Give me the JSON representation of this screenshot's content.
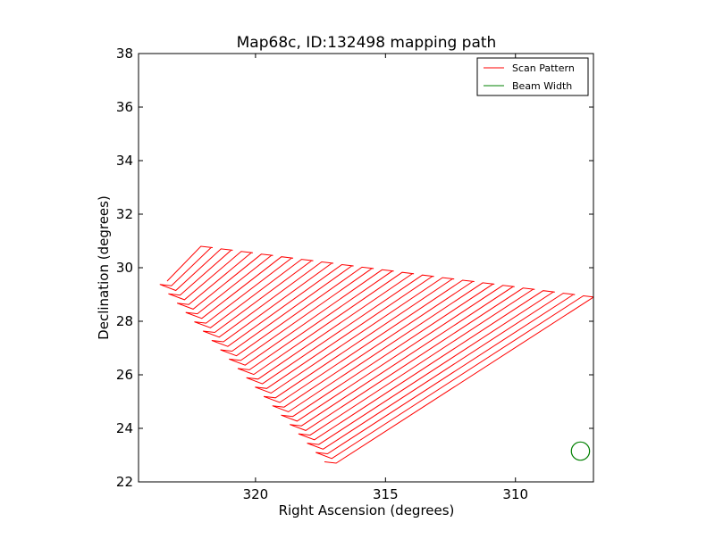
{
  "chart_data": {
    "type": "line",
    "title": "Map68c, ID:132498 mapping path",
    "xlabel": "Right Ascension (degrees)",
    "ylabel": "Declination (degrees)",
    "xlim": [
      324.5,
      307.0
    ],
    "ylim": [
      22,
      38
    ],
    "x_ticks": [
      320,
      315,
      310
    ],
    "x_tick_labels": [
      "320",
      "315",
      "310"
    ],
    "y_ticks": [
      22,
      24,
      26,
      28,
      30,
      32,
      34,
      36,
      38
    ],
    "y_tick_labels": [
      "22",
      "24",
      "26",
      "28",
      "30",
      "32",
      "34",
      "36",
      "38"
    ],
    "grid": false,
    "legend_position": "top-right",
    "series": [
      {
        "name": "Scan Pattern",
        "color": "#ff0000",
        "scan": {
          "lower_left_corner": [
            323.4,
            29.5
          ],
          "upper_left_corner": [
            322.1,
            30.8
          ],
          "lower_right_corner": [
            316.9,
            22.7
          ],
          "upper_right_corner": [
            307.0,
            28.9
          ],
          "turn_width_deg": 0.45,
          "num_legs": 40
        }
      },
      {
        "name": "Beam Width",
        "color": "#008000",
        "circle": {
          "center": [
            307.5,
            23.15
          ],
          "radius_deg": 0.35
        }
      }
    ]
  }
}
